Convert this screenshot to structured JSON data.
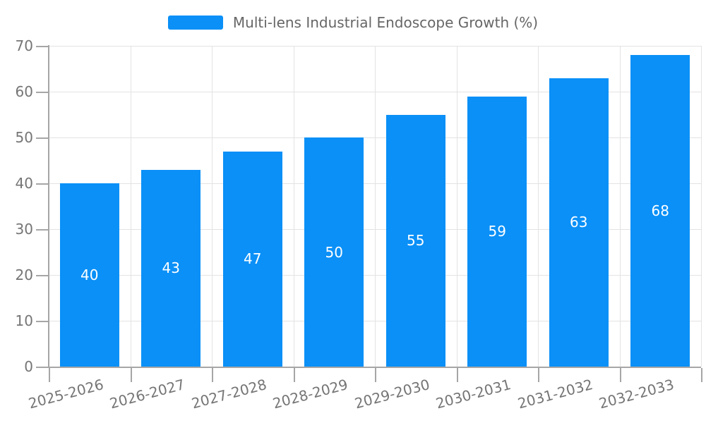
{
  "chart_data": {
    "type": "bar",
    "title": "Multi-lens Industrial Endoscope Growth (%)",
    "categories": [
      "2025-2026",
      "2026-2027",
      "2027-2028",
      "2028-2029",
      "2029-2030",
      "2030-2031",
      "2031-2032",
      "2032-2033"
    ],
    "series": [
      {
        "name": "Multi-lens Industrial Endoscope Growth (%)",
        "values": [
          40,
          43,
          47,
          50,
          55,
          59,
          63,
          68
        ]
      }
    ],
    "xlabel": "",
    "ylabel": "",
    "ylim": [
      0,
      70
    ],
    "yticks": [
      0,
      10,
      20,
      30,
      40,
      50,
      60,
      70
    ],
    "grid": true,
    "value_labels_position": "inside-center",
    "x_label_rotation_deg": -15,
    "legend": {
      "position": "top-center",
      "label": "Multi-lens Industrial Endoscope Growth (%)"
    },
    "colors": {
      "bar": "#0a90f7",
      "value_label": "#ffffff",
      "gridline": "#e3e3e3",
      "axis": "#a6a6a6",
      "tick_label": "#757575",
      "legend_text": "#666666",
      "background": "#ffffff"
    }
  }
}
